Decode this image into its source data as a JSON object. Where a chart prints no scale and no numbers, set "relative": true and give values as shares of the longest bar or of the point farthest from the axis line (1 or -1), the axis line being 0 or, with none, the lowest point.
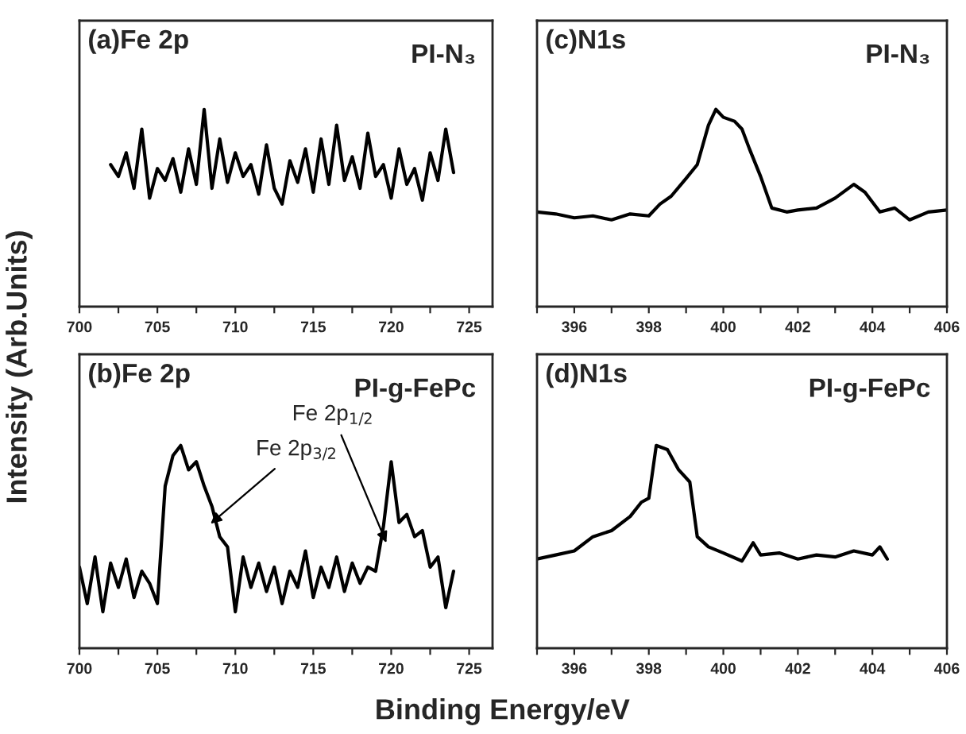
{
  "chart_data": [
    {
      "type": "line",
      "title": "(a)Fe 2p",
      "subtitle": "PI-N₃",
      "ylabel": "Intensity (Arb.Units)",
      "relative": true,
      "tick_labels": "x",
      "xlim": [
        700,
        726.5
      ],
      "xticks": [
        700,
        {
          "value": 702.5,
          "label": null
        },
        705,
        {
          "value": 707.5,
          "label": null
        },
        710,
        {
          "value": 712.5,
          "label": null
        },
        715,
        {
          "value": 717.5,
          "label": null
        },
        720,
        {
          "value": 722.5,
          "label": null
        },
        725
      ],
      "x": [
        702,
        702.5,
        703,
        703.5,
        704,
        704.5,
        705,
        705.5,
        706,
        706.5,
        707,
        707.5,
        708,
        708.5,
        709,
        709.5,
        710,
        710.5,
        711,
        711.5,
        712,
        712.5,
        713,
        713.5,
        714,
        714.5,
        715,
        715.5,
        716,
        716.5,
        717,
        717.5,
        718,
        718.5,
        719,
        719.5,
        720,
        720.5,
        721,
        721.5,
        722,
        722.5,
        723,
        723.5,
        724
      ],
      "series": [
        {
          "color": "#000000",
          "values": [
            0.72,
            0.66,
            0.78,
            0.6,
            0.9,
            0.55,
            0.7,
            0.64,
            0.75,
            0.58,
            0.8,
            0.62,
            1.0,
            0.6,
            0.85,
            0.63,
            0.78,
            0.66,
            0.72,
            0.57,
            0.82,
            0.6,
            0.52,
            0.74,
            0.63,
            0.8,
            0.58,
            0.85,
            0.62,
            0.92,
            0.64,
            0.76,
            0.6,
            0.88,
            0.66,
            0.72,
            0.55,
            0.8,
            0.62,
            0.7,
            0.54,
            0.78,
            0.64,
            0.9,
            0.68
          ]
        }
      ]
    },
    {
      "type": "line",
      "title": "(c)N1s",
      "subtitle": "PI-N₃",
      "relative": true,
      "tick_labels": "x",
      "xlim": [
        395,
        406
      ],
      "xticks": [
        {
          "value": 395,
          "label": null
        },
        396,
        {
          "value": 397,
          "label": null
        },
        398,
        {
          "value": 399,
          "label": null
        },
        400,
        {
          "value": 401,
          "label": null
        },
        402,
        {
          "value": 403,
          "label": null
        },
        404,
        {
          "value": 405,
          "label": null
        },
        406
      ],
      "x": [
        395,
        395.5,
        396,
        396.5,
        397,
        397.5,
        398,
        398.3,
        398.6,
        399,
        399.3,
        399.6,
        399.8,
        400,
        400.3,
        400.5,
        400.7,
        401,
        401.3,
        401.7,
        402,
        402.5,
        403,
        403.5,
        403.8,
        404.2,
        404.6,
        405,
        405.5,
        406
      ],
      "series": [
        {
          "color": "#000000",
          "values": [
            0.48,
            0.47,
            0.45,
            0.46,
            0.44,
            0.47,
            0.46,
            0.52,
            0.56,
            0.65,
            0.72,
            0.92,
            1.0,
            0.96,
            0.94,
            0.9,
            0.8,
            0.66,
            0.5,
            0.48,
            0.49,
            0.5,
            0.55,
            0.62,
            0.58,
            0.48,
            0.5,
            0.44,
            0.48,
            0.49
          ]
        }
      ]
    },
    {
      "type": "line",
      "title": "(b)Fe 2p",
      "subtitle": "PI-g-FePc",
      "xlabel": "Binding Energy/eV",
      "relative": true,
      "tick_labels": "x",
      "xlim": [
        700,
        726.5
      ],
      "xticks": [
        700,
        {
          "value": 702.5,
          "label": null
        },
        705,
        {
          "value": 707.5,
          "label": null
        },
        710,
        {
          "value": 712.5,
          "label": null
        },
        715,
        {
          "value": 717.5,
          "label": null
        },
        720,
        {
          "value": 722.5,
          "label": null
        },
        725
      ],
      "annotations": [
        {
          "text": "Fe 2p$_{3/2}$",
          "x": 708.2,
          "y": 0.6
        },
        {
          "text": "Fe 2p$_{1/2}$",
          "x": 719.8,
          "y": 0.5
        }
      ],
      "x": [
        700,
        700.5,
        701,
        701.5,
        702,
        702.5,
        703,
        703.5,
        704,
        704.5,
        705,
        705.5,
        706,
        706.5,
        707,
        707.5,
        708,
        708.5,
        709,
        709.5,
        710,
        710.5,
        711,
        711.5,
        712,
        712.5,
        713,
        713.5,
        714,
        714.5,
        715,
        715.5,
        716,
        716.5,
        717,
        717.5,
        718,
        718.5,
        719,
        719.5,
        720,
        720.5,
        721,
        721.5,
        722,
        722.5,
        723,
        723.5,
        724
      ],
      "series": [
        {
          "color": "#000000",
          "values": [
            0.4,
            0.22,
            0.45,
            0.18,
            0.42,
            0.3,
            0.44,
            0.25,
            0.38,
            0.32,
            0.22,
            0.8,
            0.95,
            1.0,
            0.88,
            0.92,
            0.8,
            0.7,
            0.55,
            0.5,
            0.18,
            0.45,
            0.3,
            0.42,
            0.28,
            0.4,
            0.22,
            0.38,
            0.3,
            0.48,
            0.25,
            0.4,
            0.3,
            0.45,
            0.28,
            0.42,
            0.32,
            0.4,
            0.38,
            0.6,
            0.92,
            0.62,
            0.66,
            0.55,
            0.58,
            0.4,
            0.45,
            0.2,
            0.38
          ]
        }
      ]
    },
    {
      "type": "line",
      "title": "(d)N1s",
      "subtitle": "PI-g-FePc",
      "relative": true,
      "tick_labels": "x",
      "xlim": [
        395,
        406
      ],
      "xticks": [
        {
          "value": 395,
          "label": null
        },
        396,
        {
          "value": 397,
          "label": null
        },
        398,
        {
          "value": 399,
          "label": null
        },
        400,
        {
          "value": 401,
          "label": null
        },
        402,
        {
          "value": 403,
          "label": null
        },
        404,
        {
          "value": 405,
          "label": null
        },
        406
      ],
      "x": [
        395,
        395.5,
        396,
        396.5,
        397,
        397.5,
        397.8,
        398,
        398.2,
        398.5,
        398.8,
        399.1,
        399.3,
        399.6,
        400,
        400.5,
        400.8,
        401,
        401.5,
        402,
        402.5,
        403,
        403.5,
        404,
        404.2,
        404.4
      ],
      "series": [
        {
          "color": "#000000",
          "values": [
            0.44,
            0.46,
            0.48,
            0.55,
            0.58,
            0.65,
            0.72,
            0.74,
            1.0,
            0.98,
            0.88,
            0.82,
            0.55,
            0.5,
            0.47,
            0.43,
            0.52,
            0.46,
            0.47,
            0.44,
            0.46,
            0.45,
            0.48,
            0.46,
            0.5,
            0.44
          ]
        }
      ]
    }
  ]
}
